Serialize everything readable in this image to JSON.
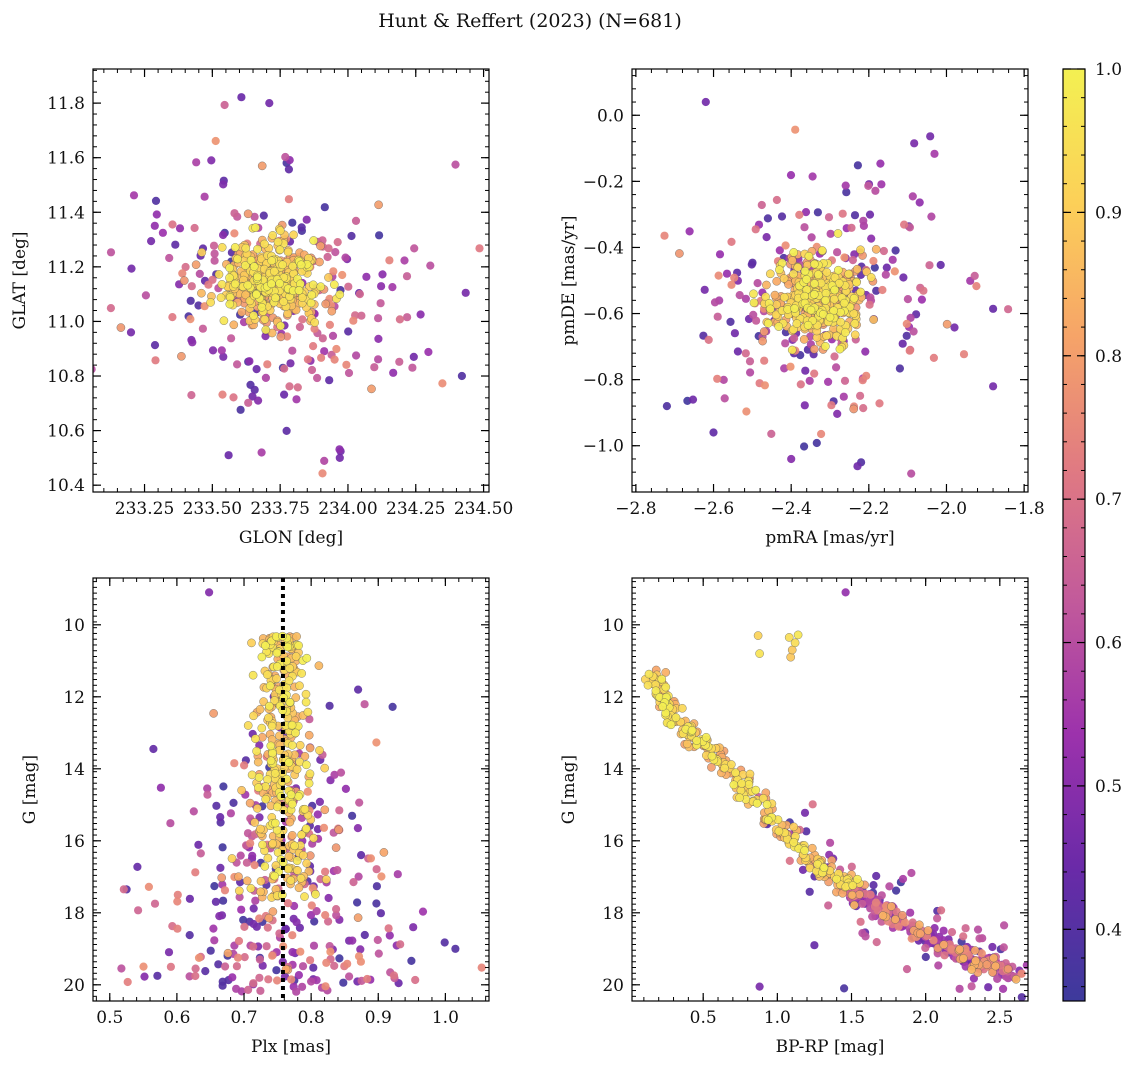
{
  "figure": {
    "title": "Hunt & Reffert (2023) (N=681)"
  },
  "colors": {
    "colormap": "plasma",
    "colormap_stops": [
      "#3d3a9c",
      "#6a2aa8",
      "#9c32ac",
      "#c25a9b",
      "#e07a82",
      "#f6a468",
      "#fcd058",
      "#f3f052"
    ],
    "cluster_line": "#000000",
    "axis": "#000000"
  },
  "colorbar": {
    "min": 0.35,
    "max": 1.0,
    "ticks": [
      0.4,
      0.5,
      0.6,
      0.7,
      0.8,
      0.9,
      1.0
    ]
  },
  "chart_data": [
    {
      "id": "pos",
      "type": "scatter",
      "xlabel": "GLON [deg]",
      "ylabel": "GLAT [deg]",
      "xlim": [
        233.06,
        234.52
      ],
      "ylim": [
        10.375,
        11.925
      ],
      "xticks": [
        233.25,
        233.5,
        233.75,
        234.0,
        234.25,
        234.5
      ],
      "xtick_labels": [
        "233.25",
        "233.50",
        "233.75",
        "234.00",
        "234.25",
        "234.50"
      ],
      "yticks": [
        10.4,
        10.6,
        10.8,
        11.0,
        11.2,
        11.4,
        11.6,
        11.8
      ],
      "ytick_labels": [
        "10.4",
        "10.6",
        "10.8",
        "11.0",
        "11.2",
        "11.4",
        "11.6",
        "11.8"
      ],
      "invert_y": false,
      "cluster": {
        "cx": 233.72,
        "cy": 11.15,
        "sx": 0.09,
        "sy": 0.07
      },
      "field": {
        "cx": 233.72,
        "cy": 11.1,
        "sx": 0.27,
        "sy": 0.24
      },
      "outliers": [
        [
          233.71,
          11.8
        ],
        [
          233.2,
          10.96
        ],
        [
          234.42,
          10.8
        ],
        [
          233.56,
          10.51
        ],
        [
          233.97,
          10.5
        ]
      ]
    },
    {
      "id": "pm",
      "type": "scatter",
      "xlabel": "pmRA [mas/yr]",
      "ylabel": "pmDE [mas/yr]",
      "xlim": [
        -2.81,
        -1.79
      ],
      "ylim": [
        -1.14,
        0.14
      ],
      "xticks": [
        -2.8,
        -2.6,
        -2.4,
        -2.2,
        -2.0,
        -1.8
      ],
      "xtick_labels": [
        "−2.8",
        "−2.6",
        "−2.4",
        "−2.2",
        "−2.0",
        "−1.8"
      ],
      "yticks": [
        -1.0,
        -0.8,
        -0.6,
        -0.4,
        -0.2,
        0.0
      ],
      "ytick_labels": [
        "−1.0",
        "−0.8",
        "−0.6",
        "−0.4",
        "−0.2",
        "0.0"
      ],
      "invert_y": false,
      "cluster": {
        "cx": -2.33,
        "cy": -0.55,
        "sx": 0.06,
        "sy": 0.06
      },
      "field": {
        "cx": -2.33,
        "cy": -0.57,
        "sx": 0.17,
        "sy": 0.2
      },
      "outliers": [
        [
          -2.62,
          0.04
        ],
        [
          -2.72,
          -0.88
        ],
        [
          -2.4,
          -1.04
        ],
        [
          -2.22,
          -1.05
        ],
        [
          -1.88,
          -0.82
        ],
        [
          -2.6,
          -0.96
        ]
      ]
    },
    {
      "id": "plx",
      "type": "scatter",
      "xlabel": "Plx [mas]",
      "ylabel": "G [mag]",
      "xlim": [
        0.475,
        1.065
      ],
      "ylim": [
        8.7,
        20.45
      ],
      "xticks": [
        0.5,
        0.6,
        0.7,
        0.8,
        0.9,
        1.0
      ],
      "xtick_labels": [
        "0.5",
        "0.6",
        "0.7",
        "0.8",
        "0.9",
        "1.0"
      ],
      "yticks": [
        10,
        12,
        14,
        16,
        18,
        20
      ],
      "ytick_labels": [
        "10",
        "12",
        "14",
        "16",
        "18",
        "20"
      ],
      "invert_y": true,
      "reference_line": {
        "x": 0.758,
        "style": "dotted"
      },
      "cluster": {
        "cx": 0.758,
        "sx": 0.017,
        "g_min": 10.3,
        "g_max": 17.6
      },
      "field": {
        "cx": 0.76,
        "sx_bright": 0.05,
        "sx_faint": 0.11,
        "g_min": 11.5,
        "g_max": 20.2
      },
      "outliers": [
        [
          0.648,
          9.1
        ],
        [
          0.565,
          13.45
        ],
        [
          0.525,
          17.35
        ],
        [
          1.015,
          19.0
        ],
        [
          0.952,
          18.4
        ],
        [
          0.87,
          11.8
        ]
      ]
    },
    {
      "id": "cmd",
      "type": "scatter",
      "xlabel": "BP-RP [mag]",
      "ylabel": "G [mag]",
      "xlim": [
        0.02,
        2.69
      ],
      "ylim": [
        8.7,
        20.45
      ],
      "xticks": [
        0.5,
        1.0,
        1.5,
        2.0,
        2.5
      ],
      "xtick_labels": [
        "0.5",
        "1.0",
        "1.5",
        "2.0",
        "2.5"
      ],
      "yticks": [
        10,
        12,
        14,
        16,
        18,
        20
      ],
      "ytick_labels": [
        "10",
        "12",
        "14",
        "16",
        "18",
        "20"
      ],
      "invert_y": true,
      "sequence": [
        [
          0.12,
          11.3
        ],
        [
          0.3,
          12.6
        ],
        [
          0.6,
          13.8
        ],
        [
          0.9,
          15.2
        ],
        [
          1.2,
          16.5
        ],
        [
          1.5,
          17.4
        ],
        [
          1.8,
          18.2
        ],
        [
          2.1,
          18.9
        ],
        [
          2.35,
          19.4
        ],
        [
          2.6,
          19.7
        ]
      ],
      "cluster_g_max": 17.3,
      "giants": [
        [
          0.87,
          10.3
        ],
        [
          0.88,
          10.8
        ],
        [
          1.08,
          10.35
        ],
        [
          1.12,
          10.5
        ],
        [
          1.1,
          10.7
        ],
        [
          1.09,
          10.9
        ],
        [
          1.14,
          10.28
        ]
      ],
      "outliers": [
        [
          1.46,
          9.1
        ],
        [
          2.45,
          18.95
        ],
        [
          1.25,
          18.9
        ],
        [
          0.88,
          20.05
        ],
        [
          1.45,
          20.1
        ]
      ]
    }
  ]
}
